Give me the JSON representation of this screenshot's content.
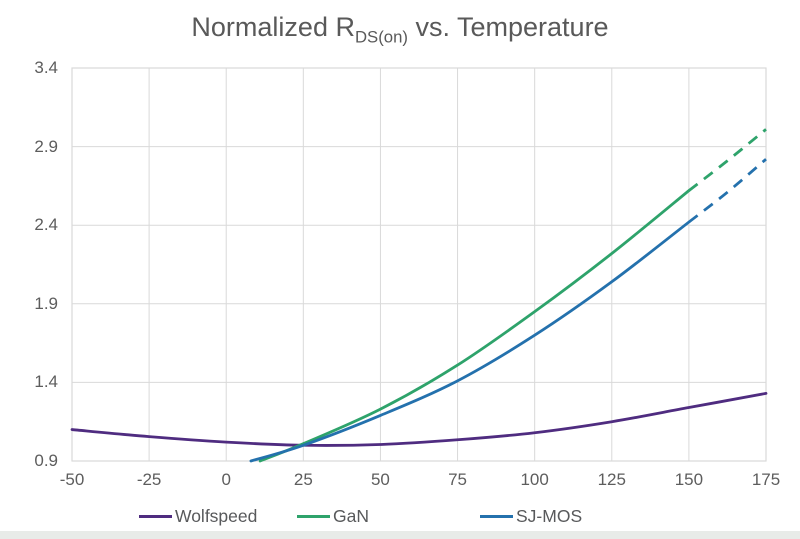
{
  "theme": {
    "background": "#ffffff",
    "grid": "#d9d9d9",
    "title_text": "#595959",
    "tick_text": "#5d5d5d",
    "legend_text": "#58595b",
    "bottom_band": "#e8ebe8"
  },
  "chart_data": {
    "type": "line",
    "title": "Normalized RDS(on) vs. Temperature",
    "title_parts": {
      "prefix": "Normalized R",
      "sub": "DS(on)",
      "suffix": " vs. Temperature"
    },
    "xlabel": "",
    "ylabel": "",
    "xlim": [
      -50,
      175
    ],
    "ylim": [
      0.9,
      3.4
    ],
    "x_ticks": [
      -50,
      -25,
      0,
      25,
      50,
      75,
      100,
      125,
      150,
      175
    ],
    "y_ticks": [
      0.9,
      1.4,
      1.9,
      2.4,
      2.9,
      3.4
    ],
    "grid": true,
    "legend_position": "bottom",
    "series": [
      {
        "name": "Wolfspeed",
        "color": "#4f2c80",
        "line_style": "solid",
        "x": [
          -50,
          -25,
          0,
          25,
          50,
          75,
          100,
          125,
          150,
          175
        ],
        "y": [
          1.1,
          1.055,
          1.02,
          1.0,
          1.005,
          1.035,
          1.08,
          1.15,
          1.24,
          1.33
        ]
      },
      {
        "name": "GaN",
        "color": "#2ea36b",
        "line_style": "solid with dashed extrapolation above 150",
        "x": [
          11,
          25,
          50,
          75,
          100,
          125,
          150
        ],
        "y": [
          0.9,
          1.01,
          1.23,
          1.51,
          1.85,
          2.22,
          2.62
        ],
        "dashed_x": [
          150,
          162.5,
          175
        ],
        "dashed_y": [
          2.62,
          2.81,
          3.01
        ]
      },
      {
        "name": "SJ-MOS",
        "color": "#2471ad",
        "line_style": "solid with dashed extrapolation above 150",
        "x": [
          8,
          25,
          50,
          75,
          100,
          125,
          150
        ],
        "y": [
          0.9,
          1.0,
          1.19,
          1.41,
          1.7,
          2.04,
          2.42
        ],
        "dashed_x": [
          150,
          162.5,
          175
        ],
        "dashed_y": [
          2.42,
          2.61,
          2.82
        ]
      }
    ]
  }
}
